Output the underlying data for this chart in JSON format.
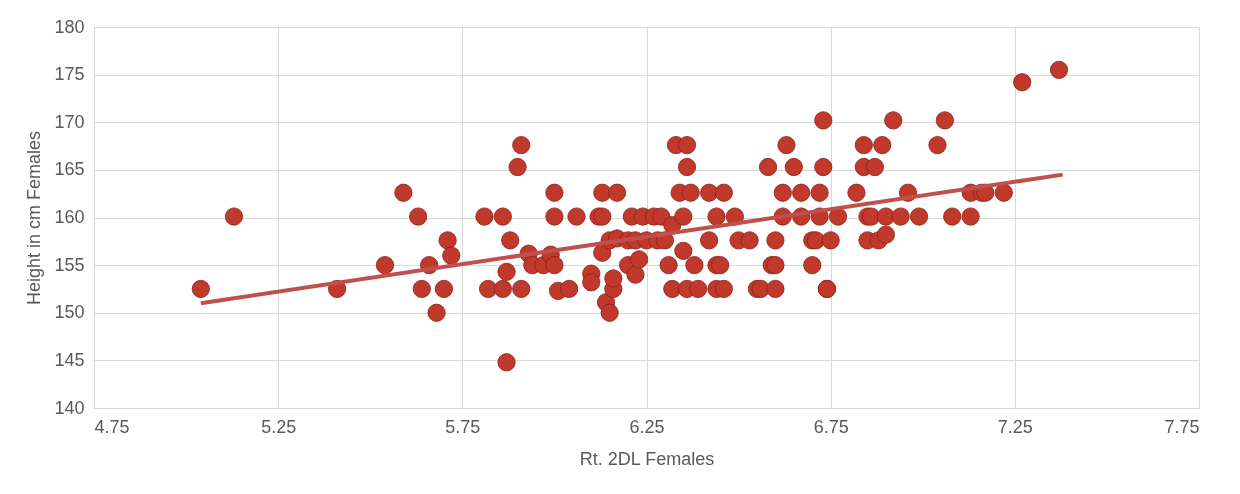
{
  "chart_data": {
    "type": "scatter",
    "xlabel": "Rt. 2DL Females",
    "ylabel": "Height in cm Females",
    "xlim": [
      4.75,
      7.75
    ],
    "xticks": [
      4.75,
      5.25,
      5.75,
      6.25,
      6.75,
      7.25,
      7.75
    ],
    "ylim": [
      140,
      180
    ],
    "yticks": [
      140,
      145,
      150,
      155,
      160,
      165,
      170,
      175,
      180
    ],
    "grid": true,
    "marker": "circle",
    "series": [
      {
        "color": "#c0392b",
        "x": [
          5.04,
          5.13,
          5.41,
          5.54,
          5.59,
          5.63,
          5.64,
          5.66,
          5.68,
          5.71,
          5.7,
          5.72,
          5.81,
          5.82,
          5.86,
          5.86,
          5.87,
          5.87,
          5.88,
          5.9,
          5.91,
          5.91,
          5.93,
          5.94,
          5.97,
          6.0,
          5.99,
          6.0,
          6.0,
          6.01,
          6.04,
          6.06,
          6.1,
          6.1,
          6.12,
          6.13,
          6.13,
          6.13,
          6.14,
          6.15,
          6.15,
          6.16,
          6.16,
          6.17,
          6.17,
          6.2,
          6.2,
          6.21,
          6.22,
          6.22,
          6.23,
          6.24,
          6.25,
          6.27,
          6.28,
          6.29,
          6.3,
          6.31,
          6.32,
          6.32,
          6.33,
          6.34,
          6.35,
          6.35,
          6.36,
          6.36,
          6.36,
          6.37,
          6.38,
          6.39,
          6.42,
          6.42,
          6.44,
          6.44,
          6.44,
          6.45,
          6.46,
          6.46,
          6.49,
          6.5,
          6.53,
          6.55,
          6.56,
          6.59,
          6.58,
          6.6,
          6.6,
          6.6,
          6.62,
          6.62,
          6.63,
          6.65,
          6.67,
          6.67,
          6.7,
          6.7,
          6.71,
          6.72,
          6.72,
          6.73,
          6.73,
          6.74,
          6.74,
          6.75,
          6.77,
          6.82,
          6.84,
          6.84,
          6.85,
          6.85,
          6.86,
          6.87,
          6.88,
          6.89,
          6.9,
          6.9,
          6.92,
          6.94,
          6.96,
          6.99,
          7.04,
          7.06,
          7.08,
          7.13,
          7.13,
          7.16,
          7.17,
          7.22,
          7.27,
          7.37
        ],
        "values": [
          152.5,
          160.1,
          152.5,
          155,
          162.6,
          160.1,
          152.5,
          155,
          150,
          157.6,
          152.5,
          156,
          160.1,
          152.5,
          160.1,
          152.5,
          154.3,
          144.8,
          157.6,
          165.3,
          167.6,
          152.5,
          156.2,
          155,
          155,
          162.6,
          156.1,
          155,
          160.1,
          152.3,
          152.5,
          160.1,
          154.1,
          153.2,
          160.1,
          160.1,
          162.6,
          156.3,
          151.1,
          150,
          157.6,
          152.5,
          153.6,
          162.6,
          157.8,
          155,
          157.6,
          160.1,
          157.6,
          154,
          155.6,
          160.1,
          157.6,
          160.1,
          157.6,
          160.1,
          157.6,
          155,
          152.5,
          159.2,
          167.6,
          162.6,
          160.1,
          156.5,
          152.5,
          165.3,
          167.6,
          162.6,
          155,
          152.5,
          162.6,
          157.6,
          160.1,
          155,
          152.5,
          155,
          162.6,
          152.5,
          160.1,
          157.6,
          157.6,
          152.5,
          152.5,
          155,
          165.3,
          155,
          157.6,
          152.5,
          162.6,
          160.1,
          167.6,
          165.3,
          162.6,
          160.1,
          155,
          157.6,
          157.6,
          160.1,
          162.6,
          170.2,
          165.3,
          152.5,
          152.5,
          157.6,
          160.1,
          162.6,
          167.6,
          165.3,
          157.6,
          160.1,
          160.1,
          165.3,
          157.6,
          167.6,
          160.1,
          158.2,
          170.2,
          160.1,
          162.6,
          160.1,
          167.6,
          170.2,
          160.1,
          160.1,
          162.6,
          162.6,
          162.6,
          162.6,
          174.2,
          175.5
        ]
      },
      {
        "type": "line",
        "marker": "none",
        "color": "#c0504d",
        "x": [
          5.04,
          7.38
        ],
        "values": [
          151.0,
          164.5
        ]
      }
    ]
  }
}
